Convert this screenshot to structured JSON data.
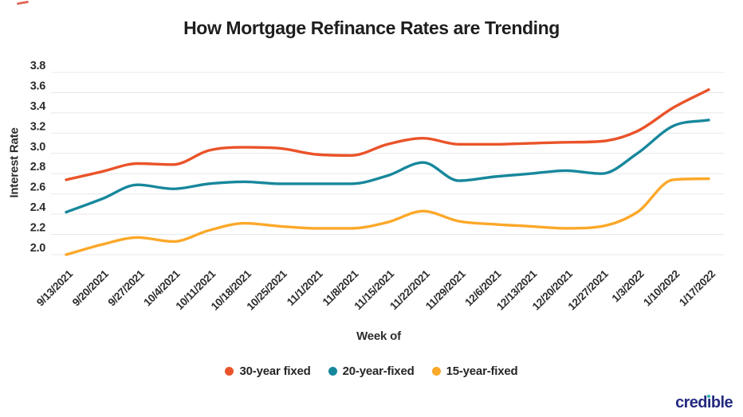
{
  "title": "How Mortgage Refinance Rates are Trending",
  "y_axis_label": "Interest Rate",
  "x_axis_label": "Week of",
  "branding": {
    "logo_text": "credible",
    "logo_color": "#252b7f",
    "logo_dot_color": "#2fb7a9"
  },
  "colors": {
    "gridline": "#e8e8e8",
    "tick_label": "#2d2d2d",
    "title_text": "#1e1e1e"
  },
  "chart_data": {
    "type": "line",
    "title": "How Mortgage Refinance Rates are Trending",
    "xlabel": "Week of",
    "ylabel": "Interest Rate",
    "x": [
      "9/13/2021",
      "9/20/2021",
      "9/27/2021",
      "10/4/2021",
      "10/11/2021",
      "10/18/2021",
      "10/25/2021",
      "11/1/2021",
      "11/8/2021",
      "11/15/2021",
      "11/22/2021",
      "11/29/2021",
      "12/6/2021",
      "12/13/2021",
      "12/20/2021",
      "12/27/2021",
      "1/3/2022",
      "1/10/2022",
      "1/17/2022"
    ],
    "series": [
      {
        "name": "30-year fixed",
        "color": "#ea5329",
        "values": [
          2.74,
          2.82,
          2.9,
          2.89,
          3.03,
          3.06,
          3.05,
          2.99,
          2.98,
          3.09,
          3.15,
          3.09,
          3.09,
          3.1,
          3.11,
          3.12,
          3.22,
          3.45,
          3.63
        ]
      },
      {
        "name": "20-year-fixed",
        "color": "#17879c",
        "values": [
          2.42,
          2.55,
          2.69,
          2.65,
          2.7,
          2.72,
          2.7,
          2.7,
          2.7,
          2.78,
          2.91,
          2.73,
          2.77,
          2.8,
          2.83,
          2.8,
          3.0,
          3.27,
          3.33
        ]
      },
      {
        "name": "15-year-fixed",
        "color": "#fca829",
        "values": [
          2.0,
          2.1,
          2.17,
          2.13,
          2.24,
          2.31,
          2.28,
          2.26,
          2.26,
          2.32,
          2.43,
          2.33,
          2.3,
          2.28,
          2.26,
          2.28,
          2.42,
          2.74,
          2.75
        ]
      }
    ],
    "yticks": [
      2.0,
      2.2,
      2.4,
      2.6,
      2.8,
      3.0,
      3.2,
      3.4,
      3.6,
      3.8
    ],
    "ylim": [
      1.9,
      3.9
    ],
    "grid": true,
    "legend_position": "bottom"
  }
}
